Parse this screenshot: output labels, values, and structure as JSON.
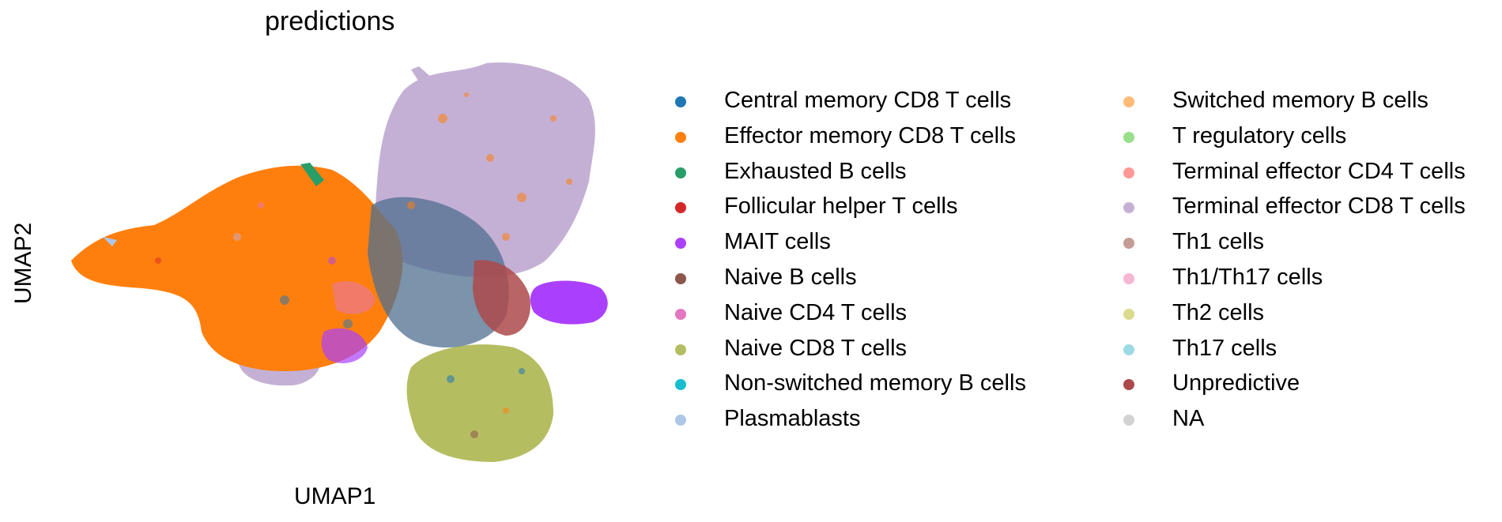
{
  "chart_data": {
    "type": "scatter",
    "title": "predictions",
    "xlabel": "UMAP1",
    "ylabel": "UMAP2",
    "grid": false,
    "legend_placement": "right",
    "legend_columns": 2,
    "categories": [
      {
        "name": "Central memory CD8 T cells",
        "color": "#1f77b4"
      },
      {
        "name": "Effector memory CD8 T cells",
        "color": "#ff7f0e"
      },
      {
        "name": "Exhausted B cells",
        "color": "#279e68"
      },
      {
        "name": "Follicular helper T cells",
        "color": "#d62728"
      },
      {
        "name": "MAIT cells",
        "color": "#aa40fc"
      },
      {
        "name": "Naive B cells",
        "color": "#8c564b"
      },
      {
        "name": "Naive CD4 T cells",
        "color": "#e377c2"
      },
      {
        "name": "Naive CD8 T cells",
        "color": "#b5bd61"
      },
      {
        "name": "Non-switched memory B cells",
        "color": "#17becf"
      },
      {
        "name": "Plasmablasts",
        "color": "#aec7e8"
      },
      {
        "name": "Switched memory B cells",
        "color": "#ffbb78"
      },
      {
        "name": "T regulatory cells",
        "color": "#98df8a"
      },
      {
        "name": "Terminal effector CD4 T cells",
        "color": "#ff9896"
      },
      {
        "name": "Terminal effector CD8 T cells",
        "color": "#c5b0d5"
      },
      {
        "name": "Th1 cells",
        "color": "#c49c94"
      },
      {
        "name": "Th1/Th17 cells",
        "color": "#f7b6d2"
      },
      {
        "name": "Th2 cells",
        "color": "#dbdb8d"
      },
      {
        "name": "Th17 cells",
        "color": "#9edae5"
      },
      {
        "name": "Unpredictive",
        "color": "#ad494a"
      },
      {
        "name": "NA",
        "color": "#d3d3d3"
      }
    ]
  }
}
